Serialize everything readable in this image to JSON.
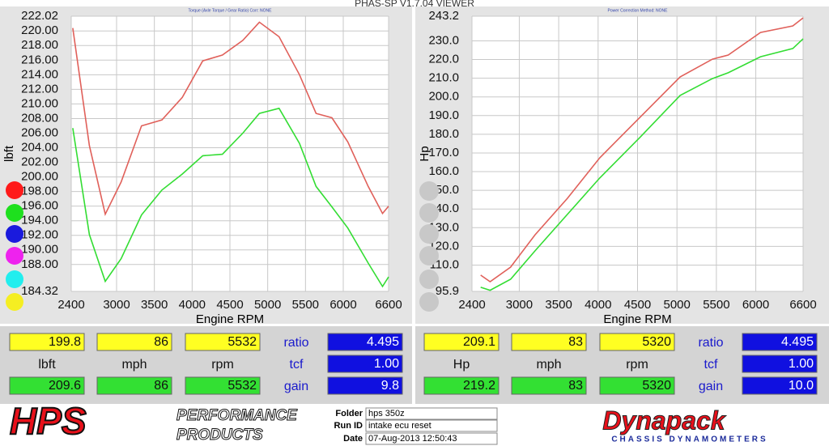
{
  "window_title": "PHAS-SP V1.7.04  VIEWER",
  "chart_data": [
    {
      "type": "line",
      "subtitle": "Torque (Axle Torque / Gear Ratio)     Corr: NONE",
      "x_label": "Engine RPM",
      "y_label": "lbft",
      "x": [
        2420,
        2640,
        2850,
        3060,
        3330,
        3600,
        3870,
        4140,
        4400,
        4670,
        4890,
        5150,
        5420,
        5640,
        5850,
        6060,
        6330,
        6520,
        6600
      ],
      "series": [
        {
          "color": "#e0605a",
          "values": [
            220.4,
            204.3,
            194.9,
            199.3,
            207.0,
            207.8,
            210.9,
            215.9,
            216.7,
            218.7,
            221.2,
            219.2,
            214.0,
            208.7,
            208.1,
            204.8,
            198.7,
            195.0,
            196.0
          ]
        },
        {
          "color": "#33dd33",
          "values": [
            206.7,
            192.1,
            185.7,
            188.8,
            194.8,
            198.2,
            200.4,
            202.9,
            203.1,
            206.0,
            208.7,
            209.4,
            204.6,
            198.7,
            195.9,
            193.0,
            188.2,
            185.0,
            186.3
          ]
        }
      ],
      "xlim": [
        2400,
        6600
      ],
      "xticks": [
        2400,
        3000,
        3500,
        4000,
        4500,
        5000,
        5500,
        6000,
        6600
      ],
      "ylim": [
        184.32,
        222.02
      ],
      "yticks": [
        184.32,
        {
          "value": 188,
          "label": "188.00"
        },
        {
          "value": 190,
          "label": "190.00"
        },
        {
          "value": 192,
          "label": "192.00"
        },
        {
          "value": 194,
          "label": "194.00"
        },
        {
          "value": 196,
          "label": "196.00"
        },
        {
          "value": 198,
          "label": "198.00"
        },
        {
          "value": 200,
          "label": "200.00"
        },
        {
          "value": 202,
          "label": "202.00"
        },
        {
          "value": 204,
          "label": "204.00"
        },
        {
          "value": 206,
          "label": "206.00"
        },
        {
          "value": 208,
          "label": "208.00"
        },
        {
          "value": 210,
          "label": "210.00"
        },
        {
          "value": 212,
          "label": "212.00"
        },
        {
          "value": 214,
          "label": "214.00"
        },
        {
          "value": 216,
          "label": "216.00"
        },
        {
          "value": 218,
          "label": "218.00"
        },
        {
          "value": 220,
          "label": "220.00"
        },
        222.02
      ],
      "grid": true
    },
    {
      "type": "line",
      "subtitle": "Power     Correction Method: NONE",
      "x_label": "Engine RPM",
      "y_label": "Hp",
      "x": [
        2510,
        2630,
        2890,
        3200,
        3610,
        4020,
        4530,
        5040,
        5450,
        5650,
        6060,
        6470,
        6600
      ],
      "series": [
        {
          "color": "#e0605a",
          "values": [
            104.6,
            101.1,
            108.9,
            126.2,
            145.7,
            167.4,
            189.0,
            210.7,
            220.2,
            222.4,
            234.5,
            238.0,
            242.3
          ]
        },
        {
          "color": "#33dd33",
          "values": [
            98.1,
            96.5,
            102.4,
            117.6,
            137.1,
            156.6,
            178.3,
            200.8,
            209.8,
            212.9,
            221.5,
            225.9,
            231.1
          ]
        }
      ],
      "xlim": [
        2400,
        6600
      ],
      "xticks": [
        2400,
        3000,
        3500,
        4000,
        4500,
        5000,
        5500,
        6000,
        6600
      ],
      "ylim": [
        95.9,
        243.2
      ],
      "yticks": [
        95.9,
        {
          "value": 110,
          "label": "110.0"
        },
        {
          "value": 120,
          "label": "120.0"
        },
        {
          "value": 130,
          "label": "130.0"
        },
        {
          "value": 140,
          "label": "140.0"
        },
        {
          "value": 150,
          "label": "150.0"
        },
        {
          "value": 160,
          "label": "160.0"
        },
        {
          "value": 170,
          "label": "170.0"
        },
        {
          "value": 180,
          "label": "180.0"
        },
        {
          "value": 190,
          "label": "190.0"
        },
        {
          "value": 200,
          "label": "200.0"
        },
        {
          "value": 210,
          "label": "210.0"
        },
        {
          "value": 220,
          "label": "220.0"
        },
        {
          "value": 230,
          "label": "230.0"
        },
        243.2
      ],
      "grid": true
    }
  ],
  "readouts": [
    {
      "cells": [
        [
          "199.8",
          "86",
          "5532",
          "ratio",
          "4.495"
        ],
        [
          "lbft",
          "mph",
          "rpm",
          "tcf",
          "1.00"
        ],
        [
          "209.6",
          "86",
          "5532",
          "gain",
          "9.8"
        ]
      ]
    },
    {
      "cells": [
        [
          "209.1",
          "83",
          "5320",
          "ratio",
          "4.495"
        ],
        [
          "Hp",
          "mph",
          "rpm",
          "tcf",
          "1.00"
        ],
        [
          "219.2",
          "83",
          "5320",
          "gain",
          "10.0"
        ]
      ]
    }
  ],
  "footer": {
    "hps_logo": "HPS",
    "hps_line1": "PERFORMANCE",
    "hps_line2": "PRODUCTS",
    "fields": [
      {
        "label": "Folder",
        "value": "hps 350z"
      },
      {
        "label": "Run ID",
        "value": "intake ecu reset"
      },
      {
        "label": "Date",
        "value": "07-Aug-2013  12:50:43"
      }
    ],
    "dyno_logo": "Dynapack",
    "dyno_sub": "CHASSIS DYNAMOMETERS"
  }
}
